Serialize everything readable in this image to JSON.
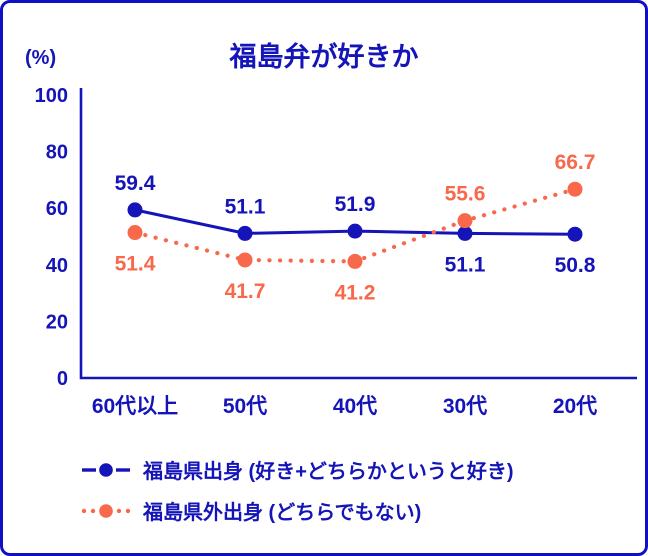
{
  "chart_data": {
    "type": "line",
    "title": "福島弁が好きか",
    "unit_label": "(%)",
    "categories": [
      "60代以上",
      "50代",
      "40代",
      "30代",
      "20代"
    ],
    "series": [
      {
        "name": "福島県出身 (好き+どちらかというと好き)",
        "values": [
          59.4,
          51.1,
          51.9,
          51.1,
          50.8
        ],
        "color": "#1414b8",
        "line_style": "solid",
        "marker": "circle",
        "label_positions": [
          "above",
          "above",
          "above",
          "below",
          "below"
        ]
      },
      {
        "name": "福島県外出身 (どちらでもない)",
        "values": [
          51.4,
          41.7,
          41.2,
          55.6,
          66.7
        ],
        "color": "#f8684a",
        "line_style": "dotted",
        "marker": "circle",
        "label_positions": [
          "below",
          "below",
          "below",
          "above",
          "above"
        ]
      }
    ],
    "ylim": [
      0,
      100
    ],
    "yticks": [
      0,
      20,
      40,
      60,
      80,
      100
    ],
    "grid": false,
    "legend_position": "bottom",
    "data_labels": true
  },
  "colors": {
    "text_blue": "#1414b8",
    "series_blue": "#1414b8",
    "series_orange": "#f8684a",
    "border_blue": "#0f0fc4",
    "background": "#ffffff"
  }
}
